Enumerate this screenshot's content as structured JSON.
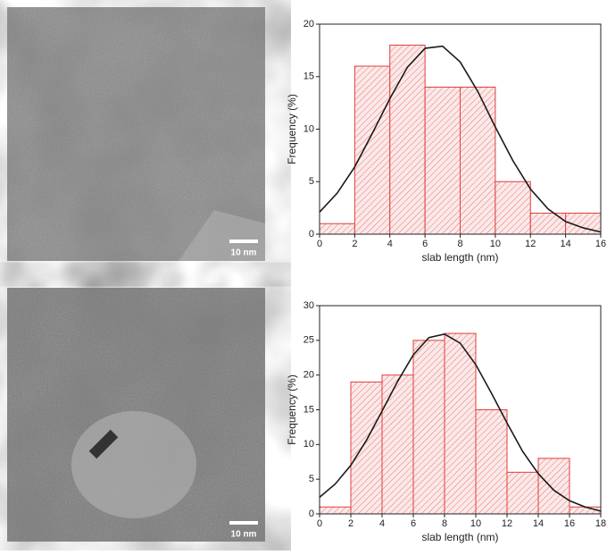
{
  "images": [
    {
      "scale_bar": "10 nm"
    },
    {
      "scale_bar": "10 nm"
    }
  ],
  "chart_data": [
    {
      "type": "histogram",
      "x_label": "slab length (nm)",
      "y_label": "Frequency (%)",
      "bins": [
        0,
        2,
        4,
        6,
        8,
        10,
        12,
        14,
        16
      ],
      "values": [
        1,
        16,
        18,
        14,
        14,
        5,
        2,
        2
      ],
      "color": "#e0403f",
      "xlim": [
        0,
        16
      ],
      "ylim": [
        0,
        20
      ],
      "xticks": [
        0,
        2,
        4,
        6,
        8,
        10,
        12,
        14,
        16
      ],
      "yticks": [
        0,
        5,
        10,
        15,
        20
      ],
      "fit": {
        "color": "#1a1a1a",
        "x": [
          0,
          1,
          2,
          3,
          4,
          5,
          6,
          7,
          8,
          9,
          10,
          11,
          12,
          13,
          14,
          15,
          16
        ],
        "y": [
          2.1,
          3.9,
          6.4,
          9.6,
          12.9,
          15.9,
          17.7,
          17.9,
          16.4,
          13.6,
          10.2,
          7.0,
          4.3,
          2.4,
          1.2,
          0.6,
          0.2
        ]
      }
    },
    {
      "type": "histogram",
      "x_label": "slab length (nm)",
      "y_label": "Frequency (%)",
      "bins": [
        0,
        2,
        4,
        6,
        8,
        10,
        12,
        14,
        16,
        18
      ],
      "values": [
        1,
        19,
        20,
        25,
        26,
        15,
        6,
        8,
        1
      ],
      "color": "#e0403f",
      "xlim": [
        0,
        18
      ],
      "ylim": [
        0,
        30
      ],
      "xticks": [
        0,
        2,
        4,
        6,
        8,
        10,
        12,
        14,
        16,
        18
      ],
      "yticks": [
        0,
        5,
        10,
        15,
        20,
        25,
        30
      ],
      "fit": {
        "color": "#1a1a1a",
        "x": [
          0,
          1,
          2,
          3,
          4,
          5,
          6,
          7,
          8,
          9,
          10,
          11,
          12,
          13,
          14,
          15,
          16,
          17,
          18
        ],
        "y": [
          2.4,
          4.3,
          7.0,
          10.6,
          14.8,
          19.1,
          22.9,
          25.4,
          25.9,
          24.6,
          21.5,
          17.4,
          13.1,
          9.0,
          5.8,
          3.4,
          1.9,
          1.0,
          0.4
        ]
      }
    }
  ]
}
